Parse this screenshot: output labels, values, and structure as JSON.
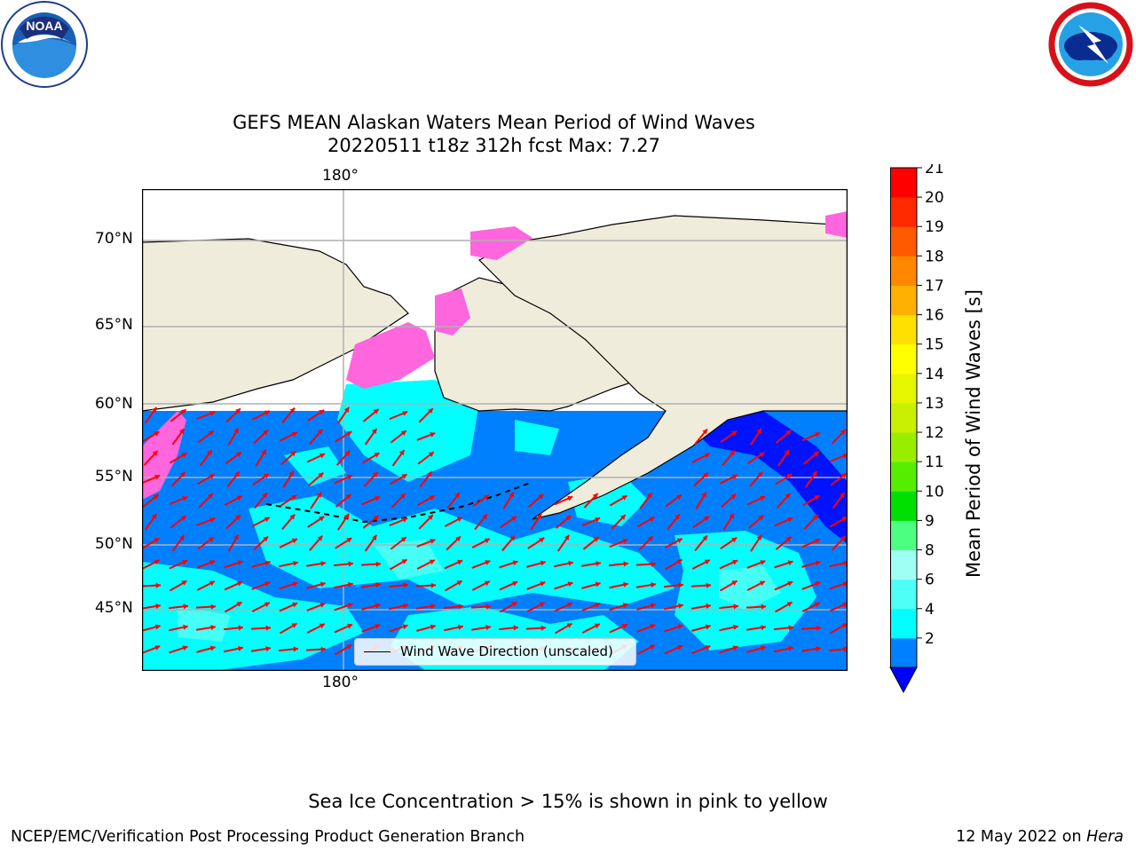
{
  "title": {
    "line1": "GEFS MEAN Alaskan Waters Mean Period of Wind Waves",
    "line2": "20220511 t18z 312h fcst   Max: 7.27"
  },
  "logos": {
    "left": {
      "name": "NOAA",
      "text": "NOAA",
      "ring_text": "NATIONAL OCEANIC AND ATMOSPHERIC ADMINISTRATION · U.S. DEPARTMENT OF COMMERCE"
    },
    "right": {
      "name": "National Weather Service",
      "ring_text": "NATIONAL WEATHER SERVICE"
    }
  },
  "map": {
    "lon_label_top": "180°",
    "lon_label_bottom": "180°",
    "lat_labels": [
      "70°N",
      "65°N",
      "60°N",
      "55°N",
      "50°N",
      "45°N"
    ],
    "legend": "Wind Wave Direction (unscaled)",
    "colors": {
      "land": "#efecdc",
      "ice_pink": "#ff66dd",
      "arrow": "#ff0000",
      "grid": "#b0b0b0"
    }
  },
  "colorbar": {
    "label": "Mean Period of Wind Waves [s]",
    "ticks": [
      "21",
      "20",
      "19",
      "18",
      "17",
      "16",
      "15",
      "14",
      "13",
      "12",
      "11",
      "10",
      "9",
      "8",
      "6",
      "4",
      "2"
    ],
    "under_color": "#0000ff",
    "colors": [
      "#0080ff",
      "#00ffff",
      "#4dfff5",
      "#a0fff5",
      "#4dff80",
      "#00e000",
      "#55ee00",
      "#99ee00",
      "#c8f000",
      "#e6f500",
      "#ffff00",
      "#ffe000",
      "#ffb000",
      "#ff8800",
      "#ff5a00",
      "#ff2a00",
      "#ff0000"
    ]
  },
  "footer": {
    "note": "Sea Ice Concentration > 15% is shown in pink to yellow",
    "left": "NCEP/EMC/Verification Post Processing Product Generation Branch",
    "date": "12 May 2022 on ",
    "host": "Hera"
  }
}
